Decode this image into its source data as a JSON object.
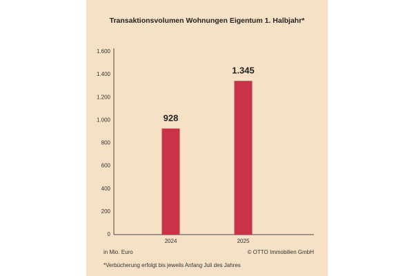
{
  "chart_data": {
    "type": "bar",
    "title": "Transaktionsvolumen Wohnungen Eigentum 1. Halbjahr*",
    "categories": [
      "2024",
      "2025"
    ],
    "values": [
      928,
      1345
    ],
    "value_labels": [
      "928",
      "1.345"
    ],
    "color": "#c8334a",
    "ylim": [
      0,
      1600
    ],
    "yticks": [
      0,
      200,
      400,
      600,
      800,
      {
        "value": 1000,
        "label": "1.000"
      },
      {
        "value": 1200,
        "label": "1.200"
      },
      {
        "value": 1400,
        "label": "1.400"
      },
      {
        "value": 1600,
        "label": "1.600"
      }
    ],
    "grid": false,
    "unit_note": "in Mio. Euro",
    "source": "© OTTO Immobilien GmbH",
    "footnote": "*Verbücherung erfolgt bis jeweils Anfang Juli des Jahres"
  }
}
